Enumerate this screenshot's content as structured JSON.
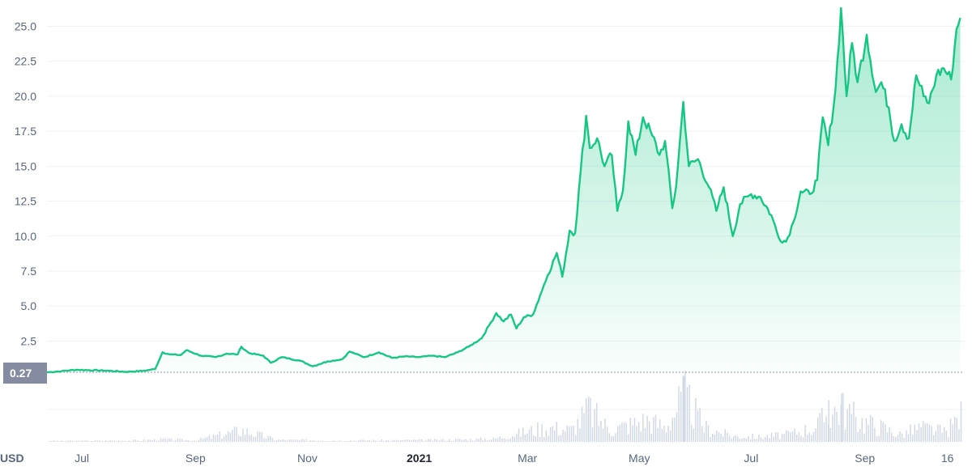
{
  "chart_data": {
    "type": "area",
    "currency_label": "USD",
    "start_price_label": "0.27",
    "y_ticks": [
      "2.5",
      "5.0",
      "7.5",
      "10.0",
      "12.5",
      "15.0",
      "17.5",
      "20.0",
      "22.5",
      "25.0"
    ],
    "y_tick_values": [
      2.5,
      5.0,
      7.5,
      10.0,
      12.5,
      15.0,
      17.5,
      20.0,
      22.5,
      25.0
    ],
    "ylim": [
      0.27,
      26.3
    ],
    "x_ticks": [
      {
        "label": "Jul",
        "date": "2020-07-01",
        "bold": false
      },
      {
        "label": "Sep",
        "date": "2020-09-01",
        "bold": false
      },
      {
        "label": "Nov",
        "date": "2020-11-01",
        "bold": false
      },
      {
        "label": "2021",
        "date": "2021-01-01",
        "bold": true
      },
      {
        "label": "Mar",
        "date": "2021-03-01",
        "bold": false
      },
      {
        "label": "May",
        "date": "2021-05-01",
        "bold": false
      },
      {
        "label": "Jul",
        "date": "2021-07-01",
        "bold": false
      },
      {
        "label": "Sep",
        "date": "2021-09-01",
        "bold": false
      },
      {
        "label": "16",
        "date": "2021-10-16",
        "bold": false
      }
    ],
    "xlim": [
      "2020-06-12",
      "2021-10-25"
    ],
    "colors": {
      "line": "#16c784",
      "area_top": "#16c784",
      "volume": "#cfd6e4",
      "grid": "#eff2f5",
      "label_bg": "#858ca2"
    },
    "grid": true,
    "price_series": {
      "name": "",
      "points": [
        [
          "2020-06-12",
          0.27
        ],
        [
          "2020-06-20",
          0.35
        ],
        [
          "2020-06-28",
          0.45
        ],
        [
          "2020-07-05",
          0.42
        ],
        [
          "2020-07-15",
          0.38
        ],
        [
          "2020-07-25",
          0.3
        ],
        [
          "2020-08-03",
          0.36
        ],
        [
          "2020-08-10",
          0.5
        ],
        [
          "2020-08-14",
          1.7
        ],
        [
          "2020-08-18",
          1.55
        ],
        [
          "2020-08-24",
          1.5
        ],
        [
          "2020-08-27",
          1.85
        ],
        [
          "2020-09-04",
          1.45
        ],
        [
          "2020-09-12",
          1.35
        ],
        [
          "2020-09-18",
          1.6
        ],
        [
          "2020-09-24",
          1.55
        ],
        [
          "2020-09-26",
          2.1
        ],
        [
          "2020-09-30",
          1.65
        ],
        [
          "2020-10-08",
          1.45
        ],
        [
          "2020-10-12",
          0.95
        ],
        [
          "2020-10-18",
          1.35
        ],
        [
          "2020-10-28",
          1.1
        ],
        [
          "2020-11-04",
          0.7
        ],
        [
          "2020-11-12",
          1.05
        ],
        [
          "2020-11-20",
          1.2
        ],
        [
          "2020-11-24",
          1.75
        ],
        [
          "2020-12-02",
          1.35
        ],
        [
          "2020-12-10",
          1.7
        ],
        [
          "2020-12-17",
          1.3
        ],
        [
          "2020-12-24",
          1.4
        ],
        [
          "2021-01-01",
          1.35
        ],
        [
          "2021-01-08",
          1.45
        ],
        [
          "2021-01-15",
          1.35
        ],
        [
          "2021-01-22",
          1.7
        ],
        [
          "2021-01-28",
          2.1
        ],
        [
          "2021-02-04",
          2.7
        ],
        [
          "2021-02-08",
          3.6
        ],
        [
          "2021-02-12",
          4.5
        ],
        [
          "2021-02-16",
          3.9
        ],
        [
          "2021-02-20",
          4.4
        ],
        [
          "2021-02-23",
          3.4
        ],
        [
          "2021-02-27",
          4.2
        ],
        [
          "2021-03-04",
          4.4
        ],
        [
          "2021-03-08",
          5.8
        ],
        [
          "2021-03-12",
          7.2
        ],
        [
          "2021-03-17",
          8.8
        ],
        [
          "2021-03-20",
          7.1
        ],
        [
          "2021-03-24",
          10.4
        ],
        [
          "2021-03-27",
          10.2
        ],
        [
          "2021-03-30",
          14.6
        ],
        [
          "2021-04-02",
          18.6
        ],
        [
          "2021-04-04",
          16.3
        ],
        [
          "2021-04-08",
          17.0
        ],
        [
          "2021-04-12",
          15.0
        ],
        [
          "2021-04-16",
          15.8
        ],
        [
          "2021-04-19",
          11.8
        ],
        [
          "2021-04-22",
          13.2
        ],
        [
          "2021-04-25",
          18.2
        ],
        [
          "2021-04-29",
          15.8
        ],
        [
          "2021-05-03",
          18.5
        ],
        [
          "2021-05-08",
          17.2
        ],
        [
          "2021-05-12",
          15.8
        ],
        [
          "2021-05-15",
          16.8
        ],
        [
          "2021-05-19",
          12.0
        ],
        [
          "2021-05-21",
          13.5
        ],
        [
          "2021-05-25",
          19.6
        ],
        [
          "2021-05-28",
          15.0
        ],
        [
          "2021-06-02",
          15.5
        ],
        [
          "2021-06-08",
          13.5
        ],
        [
          "2021-06-12",
          11.8
        ],
        [
          "2021-06-16",
          13.5
        ],
        [
          "2021-06-21",
          10.0
        ],
        [
          "2021-06-25",
          12.3
        ],
        [
          "2021-07-01",
          13.0
        ],
        [
          "2021-07-06",
          12.8
        ],
        [
          "2021-07-12",
          11.5
        ],
        [
          "2021-07-16",
          9.9
        ],
        [
          "2021-07-20",
          9.6
        ],
        [
          "2021-07-24",
          11.0
        ],
        [
          "2021-07-28",
          13.2
        ],
        [
          "2021-08-02",
          13.0
        ],
        [
          "2021-08-06",
          14.0
        ],
        [
          "2021-08-09",
          18.5
        ],
        [
          "2021-08-12",
          16.5
        ],
        [
          "2021-08-16",
          20.5
        ],
        [
          "2021-08-19",
          26.3
        ],
        [
          "2021-08-22",
          20.0
        ],
        [
          "2021-08-25",
          23.8
        ],
        [
          "2021-08-28",
          21.0
        ],
        [
          "2021-09-02",
          24.4
        ],
        [
          "2021-09-07",
          20.3
        ],
        [
          "2021-09-10",
          21.0
        ],
        [
          "2021-09-14",
          19.2
        ],
        [
          "2021-09-17",
          16.8
        ],
        [
          "2021-09-21",
          18.0
        ],
        [
          "2021-09-25",
          17.0
        ],
        [
          "2021-09-29",
          21.5
        ],
        [
          "2021-10-03",
          20.0
        ],
        [
          "2021-10-06",
          19.5
        ],
        [
          "2021-10-10",
          21.5
        ],
        [
          "2021-10-14",
          22.0
        ],
        [
          "2021-10-18",
          21.2
        ],
        [
          "2021-10-21",
          24.8
        ],
        [
          "2021-10-23",
          25.6
        ]
      ]
    },
    "volume_series": {
      "name": "",
      "relative_values": [
        [
          "2020-06-12",
          0.02
        ],
        [
          "2020-07-01",
          0.02
        ],
        [
          "2020-08-01",
          0.03
        ],
        [
          "2020-08-14",
          0.05
        ],
        [
          "2020-09-01",
          0.03
        ],
        [
          "2020-09-26",
          0.24
        ],
        [
          "2020-10-15",
          0.04
        ],
        [
          "2020-11-15",
          0.03
        ],
        [
          "2020-12-15",
          0.03
        ],
        [
          "2021-01-15",
          0.04
        ],
        [
          "2021-02-10",
          0.06
        ],
        [
          "2021-03-05",
          0.25
        ],
        [
          "2021-03-12",
          0.3
        ],
        [
          "2021-03-25",
          0.25
        ],
        [
          "2021-04-03",
          0.65
        ],
        [
          "2021-04-15",
          0.25
        ],
        [
          "2021-04-25",
          0.35
        ],
        [
          "2021-05-05",
          0.45
        ],
        [
          "2021-05-15",
          0.3
        ],
        [
          "2021-05-25",
          0.95
        ],
        [
          "2021-06-05",
          0.3
        ],
        [
          "2021-06-20",
          0.12
        ],
        [
          "2021-07-05",
          0.1
        ],
        [
          "2021-07-20",
          0.15
        ],
        [
          "2021-08-05",
          0.3
        ],
        [
          "2021-08-12",
          0.6
        ],
        [
          "2021-08-19",
          0.7
        ],
        [
          "2021-08-28",
          0.45
        ],
        [
          "2021-09-10",
          0.3
        ],
        [
          "2021-09-20",
          0.15
        ],
        [
          "2021-10-01",
          0.3
        ],
        [
          "2021-10-15",
          0.2
        ],
        [
          "2021-10-23",
          0.55
        ]
      ]
    }
  }
}
